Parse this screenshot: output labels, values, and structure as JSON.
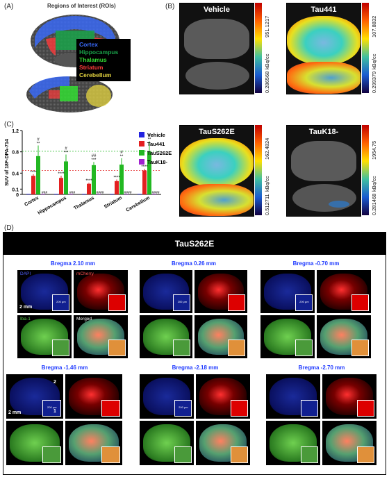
{
  "panels": {
    "a": "(A)",
    "b": "(B)",
    "c": "(C)",
    "d": "(D)"
  },
  "roi": {
    "title": "Regions of Interest (ROIs)",
    "legend": [
      {
        "label": "Cortex",
        "color": "#3a6cff"
      },
      {
        "label": "Hippocampus",
        "color": "#1aa34a"
      },
      {
        "label": "Thalamus",
        "color": "#33dd33"
      },
      {
        "label": "Striatum",
        "color": "#ff3b3b"
      },
      {
        "label": "Cerebellum",
        "color": "#e6d640"
      }
    ]
  },
  "pet": [
    {
      "title": "Vehicle",
      "max": "951.1217",
      "min": "0.286568",
      "unit": "kBq/cc",
      "style": "vehicle"
    },
    {
      "title": "Tau441",
      "max": "107.8832",
      "min": "0.299379",
      "unit": "kBq/cc",
      "style": "hot1"
    },
    {
      "title": "TauS262E",
      "max": "162.4824",
      "min": "0.512711",
      "unit": "kBq/cc",
      "style": "hot2"
    },
    {
      "title": "TauK18-",
      "max": "1954.75",
      "min": "0.281468",
      "unit": "kBq/cc",
      "style": "vehicle"
    }
  ],
  "chart_data": {
    "type": "bar",
    "ylabel": "SUV of 18F-DPA-714",
    "categories": [
      "Cortex",
      "Hippocampus",
      "Thalamus",
      "Striatum",
      "Cerebellum"
    ],
    "yticks": [
      "0",
      "0.1",
      "0.4",
      "0.8",
      "1.2"
    ],
    "series": [
      {
        "name": "Vehicle",
        "color": "#2323e0",
        "values": [
          0.01,
          0.01,
          0.01,
          0.01,
          0.01
        ]
      },
      {
        "name": "Tau441",
        "color": "#e32020",
        "values": [
          0.35,
          0.31,
          0.2,
          0.25,
          0.45
        ]
      },
      {
        "name": "TauS262E",
        "color": "#22b822",
        "values": [
          0.72,
          0.62,
          0.55,
          0.56,
          0.8
        ]
      },
      {
        "name": "TauK18-",
        "color": "#a020d0",
        "values": [
          0.01,
          0.01,
          0.01,
          0.01,
          0.01
        ]
      }
    ],
    "errors": [
      0.03,
      0.04,
      0.02,
      0.03,
      0.03
    ],
    "errors_e": [
      0.2,
      0.13,
      0.06,
      0.12,
      0.2
    ],
    "reflines": [
      {
        "value": 0.81,
        "color": "#22b822"
      },
      {
        "value": 0.45,
        "color": "#e32020"
      }
    ],
    "annot_tau441": [
      "****",
      "****",
      "****",
      "****",
      "****"
    ],
    "annot_s262e_top": [
      "#",
      "#",
      "##",
      "#",
      "#"
    ],
    "annot_s262e": [
      "**",
      "***",
      "***",
      "**",
      "**"
    ],
    "annot_k18": [
      "###",
      "###",
      "####",
      "####",
      "####"
    ]
  },
  "histo": {
    "title": "TauS262E",
    "sections": [
      {
        "label": "Bregma 2.10 mm",
        "scale": "2 mm",
        "inset_scale": "200 μm",
        "c1": "DAPI",
        "c2": "mCherry",
        "c3": "Iba-1",
        "c4": "Merged"
      },
      {
        "label": "Bregma 0.26 mm",
        "scale": "",
        "inset_scale": "200 μm"
      },
      {
        "label": "Bregma -0.70 mm",
        "scale": "",
        "inset_scale": "200 μm"
      },
      {
        "label": "Bregma -1.46 mm",
        "scale": "2 mm",
        "inset_scale": "200 μm",
        "n1": "1",
        "n2": "2"
      },
      {
        "label": "Bregma -2.18 mm",
        "scale": "",
        "inset_scale": "200 μm"
      },
      {
        "label": "Bregma -2.70 mm",
        "scale": "",
        "inset_scale": ""
      }
    ]
  }
}
